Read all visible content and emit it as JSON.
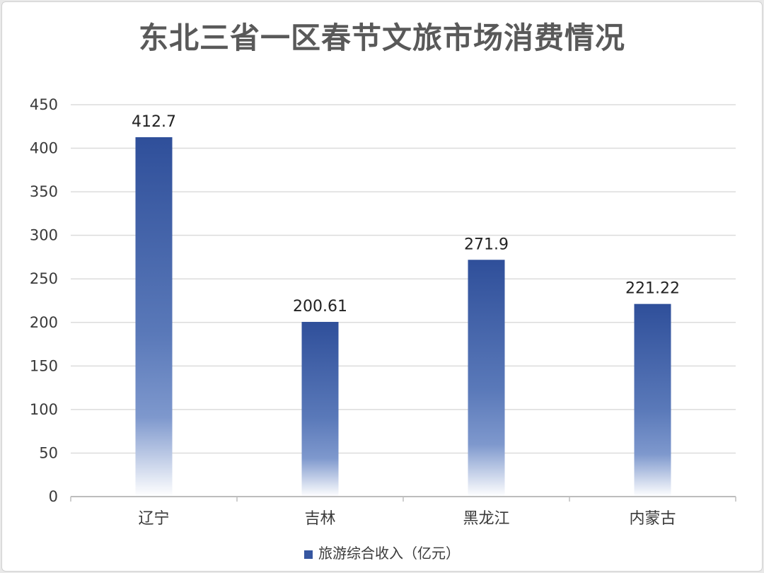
{
  "chart_data": {
    "type": "bar",
    "title": "东北三省一区春节文旅市场消费情况",
    "categories": [
      "辽宁",
      "吉林",
      "黑龙江",
      "内蒙古"
    ],
    "series": [
      {
        "name": "旅游综合收入（亿元）",
        "values": [
          412.7,
          200.61,
          271.9,
          221.22
        ]
      }
    ],
    "data_labels": [
      "412.7",
      "200.61",
      "271.9",
      "221.22"
    ],
    "ylim": [
      0,
      450
    ],
    "yticks": [
      0,
      50,
      100,
      150,
      200,
      250,
      300,
      350,
      400,
      450
    ],
    "grid": true,
    "legend_position": "bottom",
    "bar_color": "#3656a0"
  }
}
